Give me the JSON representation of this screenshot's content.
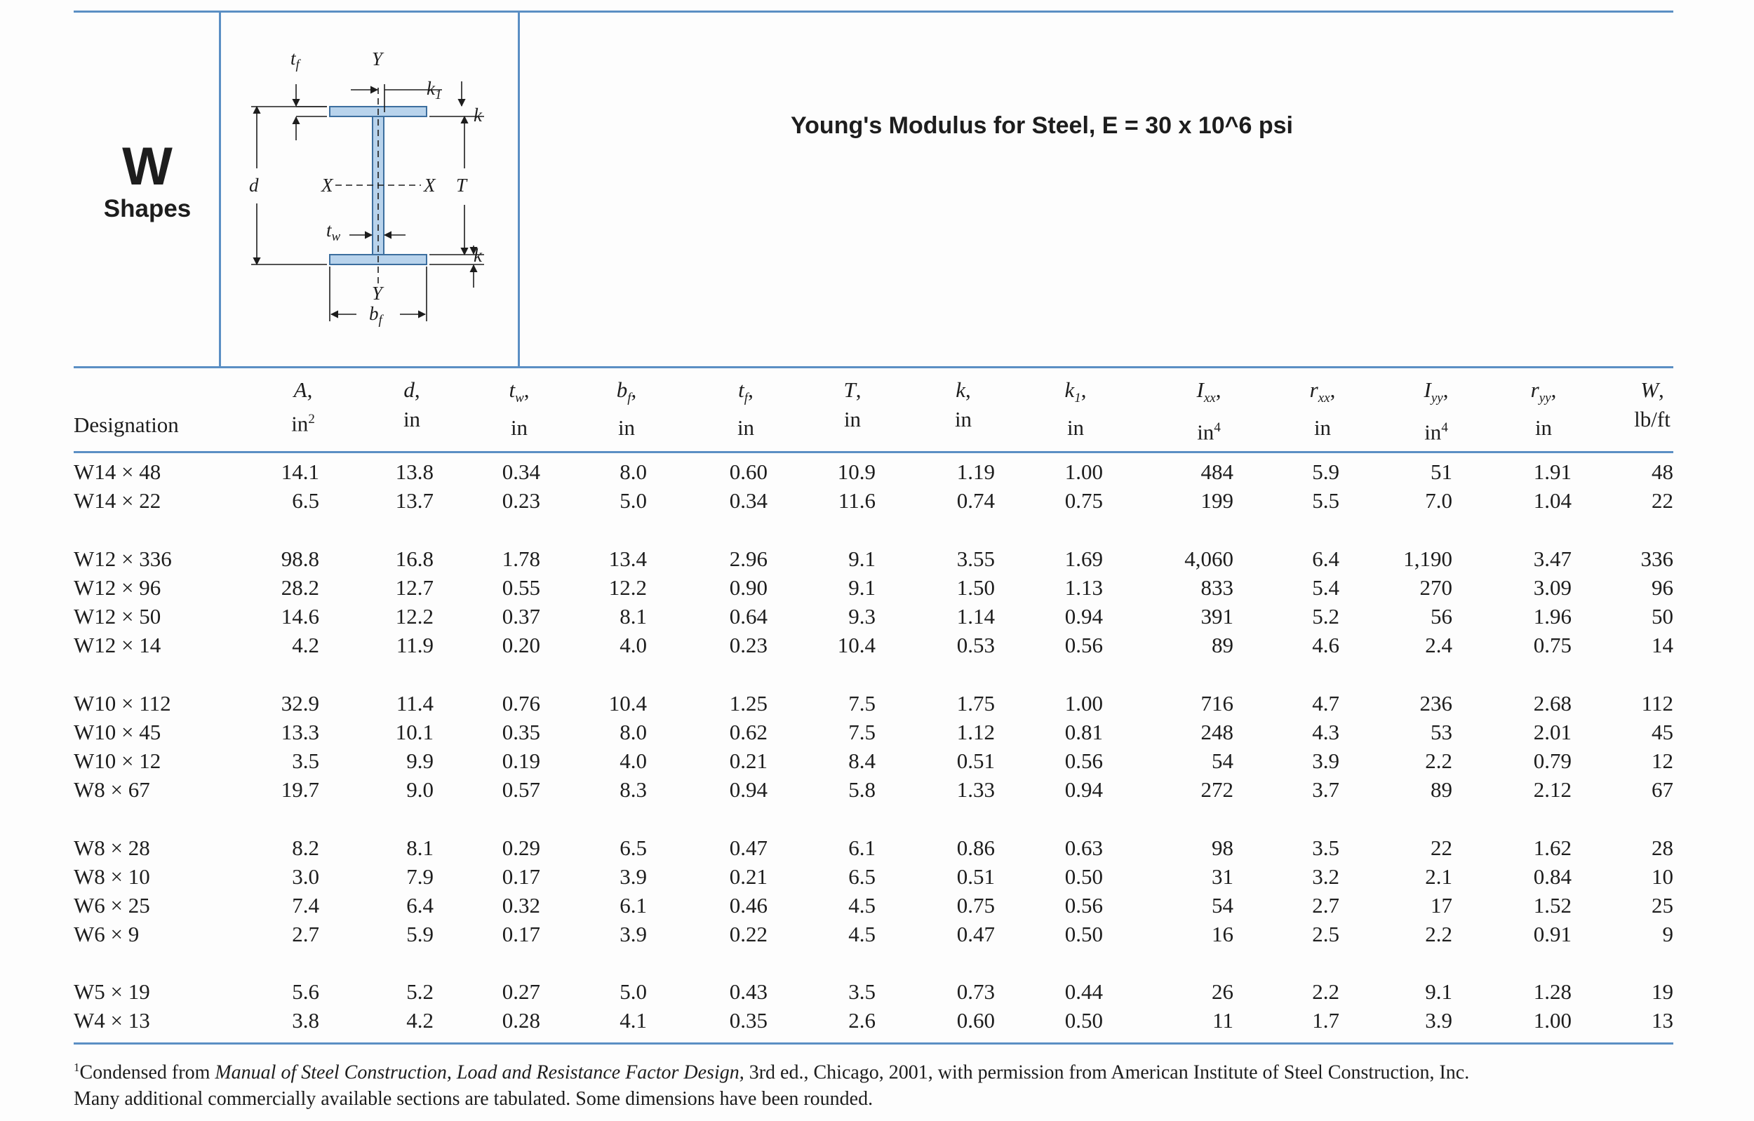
{
  "shape_label": {
    "letter": "W",
    "word": "Shapes"
  },
  "note": "Young's Modulus for Steel, E  = 30 x 10^6 psi",
  "diagram_labels": {
    "y_top": "Y",
    "y_bottom": "Y",
    "x_left": "X",
    "x_right": "X",
    "t": "T",
    "k_top": "k",
    "k_bottom": "k",
    "d": "d",
    "tf": "t",
    "tf_sub": "f",
    "tw": "t",
    "tw_sub": "w",
    "bf": "b",
    "bf_sub": "f",
    "k1": "k",
    "k1_sub": "1"
  },
  "header": {
    "designation": "Designation",
    "columns": [
      {
        "sym": "A",
        "sub": "",
        "unit": "in",
        "exp": "2"
      },
      {
        "sym": "d",
        "sub": "",
        "unit": "in",
        "exp": ""
      },
      {
        "sym": "t",
        "sub": "w",
        "unit": "in",
        "exp": ""
      },
      {
        "sym": "b",
        "sub": "f",
        "unit": "in",
        "exp": ""
      },
      {
        "sym": "t",
        "sub": "f",
        "unit": "in",
        "exp": ""
      },
      {
        "sym": "T",
        "sub": "",
        "unit": "in",
        "exp": ""
      },
      {
        "sym": "k",
        "sub": "",
        "unit": "in",
        "exp": ""
      },
      {
        "sym": "k",
        "sub": "1",
        "unit": "in",
        "exp": ""
      },
      {
        "sym": "I",
        "sub": "xx",
        "unit": "in",
        "exp": "4"
      },
      {
        "sym": "r",
        "sub": "xx",
        "unit": "in",
        "exp": ""
      },
      {
        "sym": "I",
        "sub": "yy",
        "unit": "in",
        "exp": "4"
      },
      {
        "sym": "r",
        "sub": "yy",
        "unit": "in",
        "exp": ""
      },
      {
        "sym": "W",
        "sub": "",
        "unit": "lb/ft",
        "exp": ""
      }
    ]
  },
  "groups": [
    [
      [
        "W14 × 48",
        "14.1",
        "13.8",
        "0.34",
        "8.0",
        "0.60",
        "10.9",
        "1.19",
        "1.00",
        "484",
        "5.9",
        "51",
        "1.91",
        "48"
      ],
      [
        "W14 × 22",
        "6.5",
        "13.7",
        "0.23",
        "5.0",
        "0.34",
        "11.6",
        "0.74",
        "0.75",
        "199",
        "5.5",
        "7.0",
        "1.04",
        "22"
      ]
    ],
    [
      [
        "W12 × 336",
        "98.8",
        "16.8",
        "1.78",
        "13.4",
        "2.96",
        "9.1",
        "3.55",
        "1.69",
        "4,060",
        "6.4",
        "1,190",
        "3.47",
        "336"
      ],
      [
        "W12 × 96",
        "28.2",
        "12.7",
        "0.55",
        "12.2",
        "0.90",
        "9.1",
        "1.50",
        "1.13",
        "833",
        "5.4",
        "270",
        "3.09",
        "96"
      ],
      [
        "W12 × 50",
        "14.6",
        "12.2",
        "0.37",
        "8.1",
        "0.64",
        "9.3",
        "1.14",
        "0.94",
        "391",
        "5.2",
        "56",
        "1.96",
        "50"
      ],
      [
        "W12 × 14",
        "4.2",
        "11.9",
        "0.20",
        "4.0",
        "0.23",
        "10.4",
        "0.53",
        "0.56",
        "89",
        "4.6",
        "2.4",
        "0.75",
        "14"
      ]
    ],
    [
      [
        "W10 × 112",
        "32.9",
        "11.4",
        "0.76",
        "10.4",
        "1.25",
        "7.5",
        "1.75",
        "1.00",
        "716",
        "4.7",
        "236",
        "2.68",
        "112"
      ],
      [
        "W10 × 45",
        "13.3",
        "10.1",
        "0.35",
        "8.0",
        "0.62",
        "7.5",
        "1.12",
        "0.81",
        "248",
        "4.3",
        "53",
        "2.01",
        "45"
      ],
      [
        "W10 × 12",
        "3.5",
        "9.9",
        "0.19",
        "4.0",
        "0.21",
        "8.4",
        "0.51",
        "0.56",
        "54",
        "3.9",
        "2.2",
        "0.79",
        "12"
      ],
      [
        "W8 × 67",
        "19.7",
        "9.0",
        "0.57",
        "8.3",
        "0.94",
        "5.8",
        "1.33",
        "0.94",
        "272",
        "3.7",
        "89",
        "2.12",
        "67"
      ]
    ],
    [
      [
        "W8 × 28",
        "8.2",
        "8.1",
        "0.29",
        "6.5",
        "0.47",
        "6.1",
        "0.86",
        "0.63",
        "98",
        "3.5",
        "22",
        "1.62",
        "28"
      ],
      [
        "W8 × 10",
        "3.0",
        "7.9",
        "0.17",
        "3.9",
        "0.21",
        "6.5",
        "0.51",
        "0.50",
        "31",
        "3.2",
        "2.1",
        "0.84",
        "10"
      ],
      [
        "W6 × 25",
        "7.4",
        "6.4",
        "0.32",
        "6.1",
        "0.46",
        "4.5",
        "0.75",
        "0.56",
        "54",
        "2.7",
        "17",
        "1.52",
        "25"
      ],
      [
        "W6 × 9",
        "2.7",
        "5.9",
        "0.17",
        "3.9",
        "0.22",
        "4.5",
        "0.47",
        "0.50",
        "16",
        "2.5",
        "2.2",
        "0.91",
        "9"
      ]
    ],
    [
      [
        "W5 × 19",
        "5.6",
        "5.2",
        "0.27",
        "5.0",
        "0.43",
        "3.5",
        "0.73",
        "0.44",
        "26",
        "2.2",
        "9.1",
        "1.28",
        "19"
      ],
      [
        "W4 × 13",
        "3.8",
        "4.2",
        "0.28",
        "4.1",
        "0.35",
        "2.6",
        "0.60",
        "0.50",
        "11",
        "1.7",
        "3.9",
        "1.00",
        "13"
      ]
    ]
  ],
  "footnote": {
    "marker": "1",
    "text_before": "Condensed from ",
    "title": "Manual of Steel Construction, Load and Resistance Factor Design,",
    "text_after": " 3rd ed., Chicago, 2001, with permission from American Institute of Steel Construction, Inc.",
    "line2": "Many additional commercially available sections are tabulated. Some dimensions have been rounded."
  },
  "colors": {
    "rule": "#5b8fc4",
    "flange": "#b8d3ec",
    "text": "#1d1d1d"
  }
}
